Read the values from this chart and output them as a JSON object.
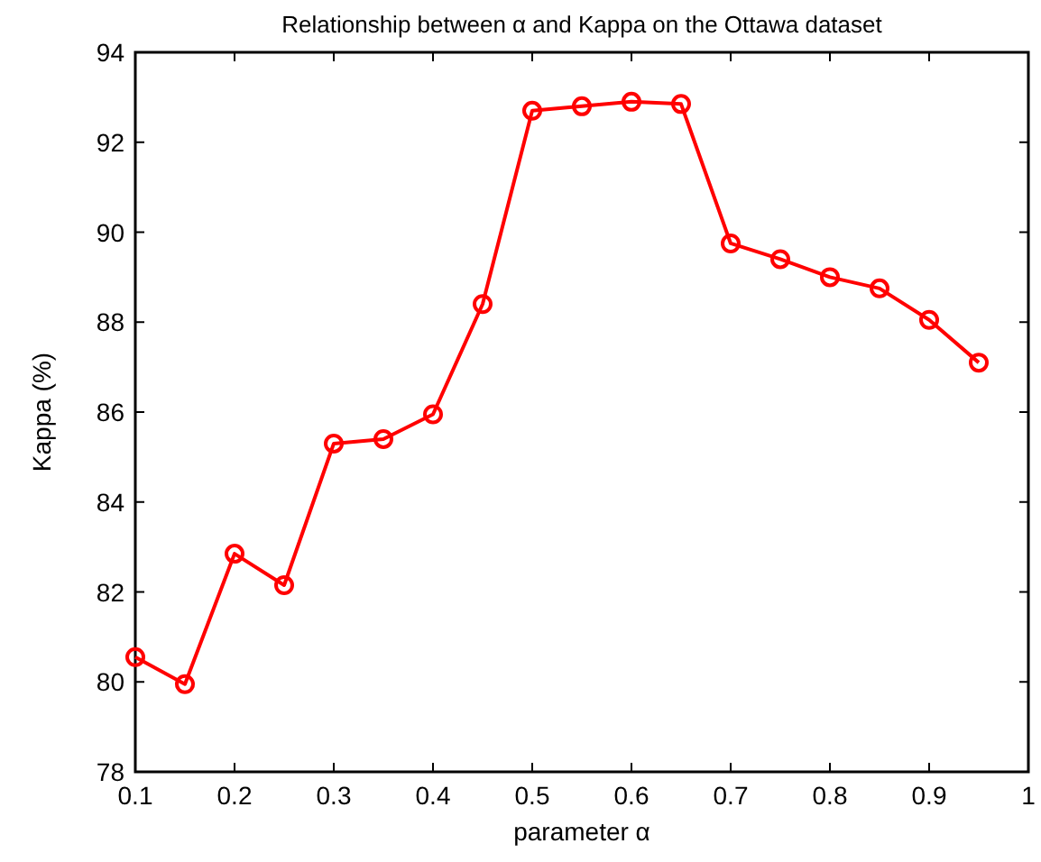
{
  "chart_data": {
    "type": "line",
    "title": "Relationship between α and Kappa on the Ottawa dataset",
    "xlabel": "parameter α",
    "ylabel": "Kappa (%)",
    "x": [
      0.1,
      0.15,
      0.2,
      0.25,
      0.3,
      0.35,
      0.4,
      0.45,
      0.5,
      0.55,
      0.6,
      0.65,
      0.7,
      0.75,
      0.8,
      0.85,
      0.9,
      0.95
    ],
    "series": [
      {
        "color": "#ff0000",
        "values": [
          80.55,
          79.95,
          82.85,
          82.15,
          85.3,
          85.4,
          85.95,
          88.4,
          92.7,
          92.8,
          92.9,
          92.85,
          89.75,
          89.4,
          89.0,
          88.75,
          88.05,
          87.1
        ]
      }
    ],
    "xlim": [
      0.1,
      1
    ],
    "xticks": [
      0.1,
      0.2,
      0.3,
      0.4,
      0.5,
      0.6,
      0.7,
      0.8,
      0.9,
      1
    ],
    "ylim": [
      78,
      94
    ],
    "yticks": [
      78,
      80,
      82,
      84,
      86,
      88,
      90,
      92,
      94
    ],
    "marker": "circle",
    "line_style": "solid",
    "grid": false
  }
}
